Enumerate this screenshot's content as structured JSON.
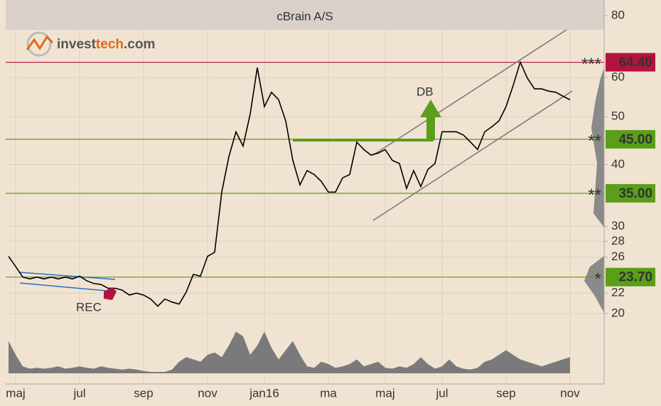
{
  "chart_data": {
    "type": "line",
    "title": "cBrain A/S",
    "logo": [
      "invest",
      "tech",
      ".com"
    ],
    "categories": [
      null,
      "maj",
      null,
      null,
      null,
      null,
      null,
      null,
      null,
      null,
      "jul",
      null,
      null,
      null,
      null,
      null,
      null,
      null,
      null,
      "sep",
      null,
      null,
      null,
      null,
      null,
      null,
      null,
      null,
      "nov",
      null,
      null,
      null,
      null,
      null,
      null,
      null,
      "jan16",
      null,
      null,
      null,
      null,
      null,
      null,
      null,
      null,
      "ma",
      null,
      null,
      null,
      null,
      null,
      null,
      null,
      "maj",
      null,
      null,
      null,
      null,
      null,
      null,
      null,
      "jul",
      null,
      null,
      null,
      null,
      null,
      null,
      null,
      null,
      "sep",
      null,
      null,
      null,
      null,
      null,
      null,
      null,
      null,
      "nov"
    ],
    "values": [
      26.1,
      24.9,
      23.7,
      23.5,
      23.7,
      23.5,
      23.7,
      23.5,
      23.7,
      23.5,
      23.8,
      23.3,
      23.0,
      22.9,
      22.5,
      22.5,
      22.3,
      21.8,
      22.0,
      21.8,
      21.4,
      20.7,
      21.4,
      21.1,
      20.9,
      22.1,
      24.0,
      23.8,
      26.1,
      26.6,
      35.2,
      41.5,
      46.6,
      43.6,
      50.6,
      62.8,
      52.4,
      56.0,
      54.1,
      49.0,
      40.8,
      36.4,
      38.9,
      38.2,
      37.0,
      35.2,
      35.2,
      37.6,
      38.2,
      44.4,
      42.9,
      41.8,
      42.2,
      42.9,
      40.8,
      40.2,
      35.8,
      38.9,
      36.1,
      39.1,
      40.2,
      46.6,
      46.6,
      46.6,
      45.9,
      44.4,
      42.9,
      46.6,
      47.7,
      49.0,
      52.4,
      57.8,
      64.4,
      59.8,
      56.9,
      56.9,
      56.3,
      56.0,
      55.0,
      54.1
    ],
    "color": "#000000",
    "volume": {
      "values": [
        70,
        40,
        15,
        10,
        12,
        10,
        12,
        15,
        10,
        12,
        15,
        12,
        10,
        15,
        12,
        10,
        8,
        10,
        8,
        5,
        3,
        3,
        3,
        8,
        25,
        35,
        30,
        25,
        40,
        45,
        35,
        60,
        90,
        80,
        40,
        60,
        90,
        55,
        30,
        50,
        70,
        40,
        15,
        12,
        25,
        20,
        12,
        15,
        20,
        30,
        15,
        20,
        25,
        12,
        10,
        15,
        12,
        20,
        35,
        20,
        10,
        15,
        30,
        15,
        10,
        8,
        12,
        25,
        30,
        40,
        50,
        40,
        30,
        25,
        20,
        15,
        20,
        25,
        30,
        35
      ],
      "color": "#7a7a7a"
    },
    "volume_ylim": [
      0,
      100
    ],
    "ylim": [
      20,
      80
    ],
    "log_scale": true,
    "yticks": [
      20,
      22,
      26,
      28,
      30,
      40,
      50,
      60,
      80
    ],
    "grid": true,
    "levels": [
      {
        "value": 64.4,
        "label": "64.40",
        "stars": "***",
        "color": "#b5123f"
      },
      {
        "value": 45,
        "label": "45.00",
        "stars": "**",
        "color": "#5a9e1a"
      },
      {
        "value": 35,
        "label": "35.00",
        "stars": "**",
        "color": "#5a9e1a"
      },
      {
        "value": 23.7,
        "label": "23.70",
        "stars": "*",
        "color": "#5a9e1a"
      }
    ],
    "annotations": [
      "DB",
      "REC"
    ]
  }
}
